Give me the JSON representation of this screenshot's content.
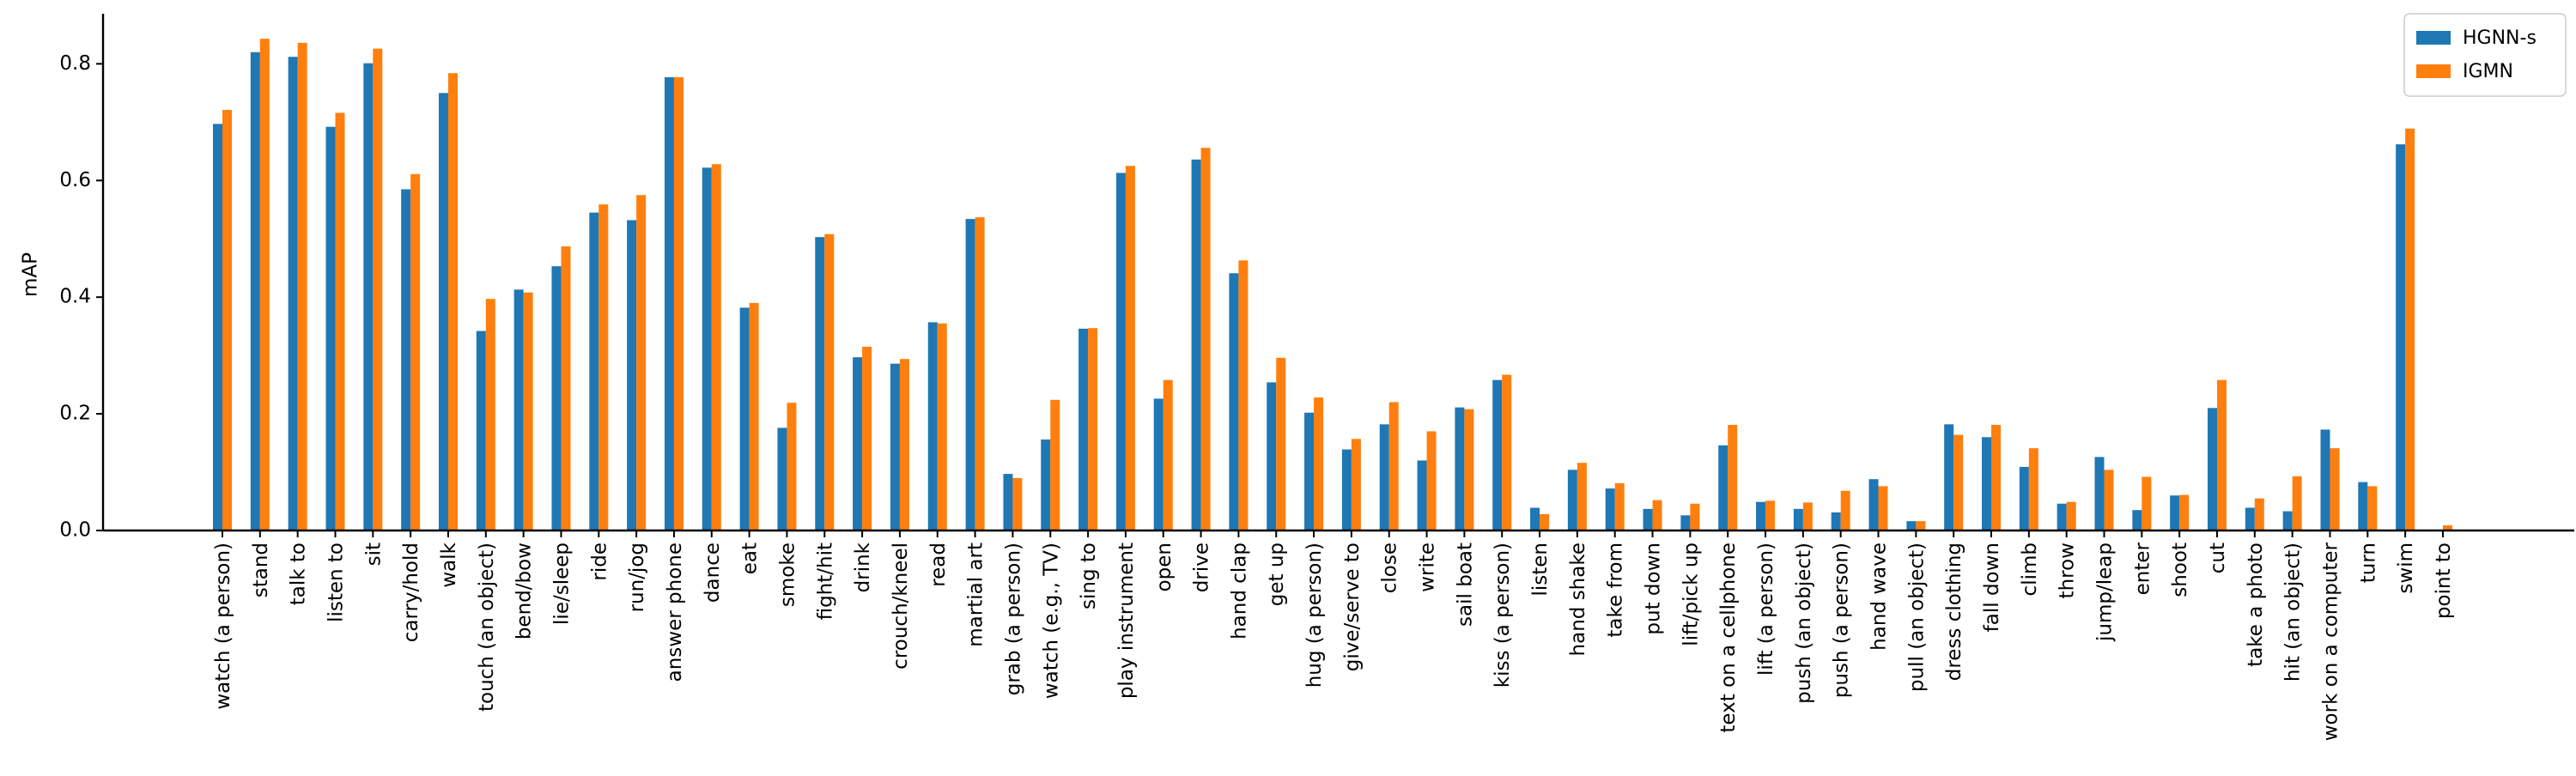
{
  "chart_data": {
    "type": "bar",
    "title": "",
    "xlabel": "",
    "ylabel": "mAP",
    "ylim": [
      0,
      0.88
    ],
    "yticks": [
      0.0,
      0.2,
      0.4,
      0.6,
      0.8
    ],
    "ytick_labels": [
      "0.0",
      "0.2",
      "0.4",
      "0.6",
      "0.8"
    ],
    "grid": false,
    "legend_position": "top-right",
    "categories": [
      "watch (a person)",
      "stand",
      "talk to",
      "listen to",
      "sit",
      "carry/hold",
      "walk",
      "touch (an object)",
      "bend/bow",
      "lie/sleep",
      "ride",
      "run/jog",
      "answer phone",
      "dance",
      "eat",
      "smoke",
      "fight/hit",
      "drink",
      "crouch/kneel",
      "read",
      "martial art",
      "grab (a person)",
      "watch (e.g., TV)",
      "sing to",
      "play instrument",
      "open",
      "drive",
      "hand clap",
      "get up",
      "hug (a person)",
      "give/serve to",
      "close",
      "write",
      "sail boat",
      "kiss (a person)",
      "listen",
      "hand shake",
      "take from",
      "put down",
      "lift/pick up",
      "text on a cellphone",
      "lift (a person)",
      "push (an object)",
      "push (a person)",
      "hand wave",
      "pull (an object)",
      "dress clothing",
      "fall down",
      "climb",
      "throw",
      "jump/leap",
      "enter",
      "shoot",
      "cut",
      "take a photo",
      "hit (an object)",
      "work on a computer",
      "turn",
      "swim",
      "point to"
    ],
    "series": [
      {
        "name": "HGNN-s",
        "color": "#1f77b4",
        "values": [
          0.697,
          0.82,
          0.812,
          0.692,
          0.801,
          0.585,
          0.75,
          0.342,
          0.413,
          0.453,
          0.545,
          0.532,
          0.777,
          0.622,
          0.382,
          0.176,
          0.503,
          0.297,
          0.286,
          0.357,
          0.534,
          0.097,
          0.156,
          0.346,
          0.613,
          0.226,
          0.636,
          0.441,
          0.254,
          0.202,
          0.139,
          0.182,
          0.12,
          0.211,
          0.258,
          0.039,
          0.104,
          0.072,
          0.037,
          0.026,
          0.146,
          0.049,
          0.037,
          0.031,
          0.088,
          0.016,
          0.182,
          0.16,
          0.109,
          0.046,
          0.126,
          0.035,
          0.06,
          0.21,
          0.039,
          0.033,
          0.173,
          0.083,
          0.662,
          0.001
        ]
      },
      {
        "name": "IGMN",
        "color": "#ff7f0e",
        "values": [
          0.721,
          0.843,
          0.836,
          0.716,
          0.826,
          0.611,
          0.784,
          0.397,
          0.408,
          0.487,
          0.559,
          0.575,
          0.777,
          0.628,
          0.39,
          0.219,
          0.508,
          0.315,
          0.294,
          0.355,
          0.537,
          0.09,
          0.224,
          0.347,
          0.625,
          0.258,
          0.656,
          0.463,
          0.296,
          0.228,
          0.157,
          0.22,
          0.17,
          0.208,
          0.267,
          0.028,
          0.116,
          0.081,
          0.052,
          0.046,
          0.181,
          0.051,
          0.048,
          0.068,
          0.076,
          0.016,
          0.164,
          0.181,
          0.141,
          0.049,
          0.104,
          0.092,
          0.061,
          0.258,
          0.055,
          0.093,
          0.141,
          0.076,
          0.689,
          0.009
        ]
      }
    ]
  }
}
